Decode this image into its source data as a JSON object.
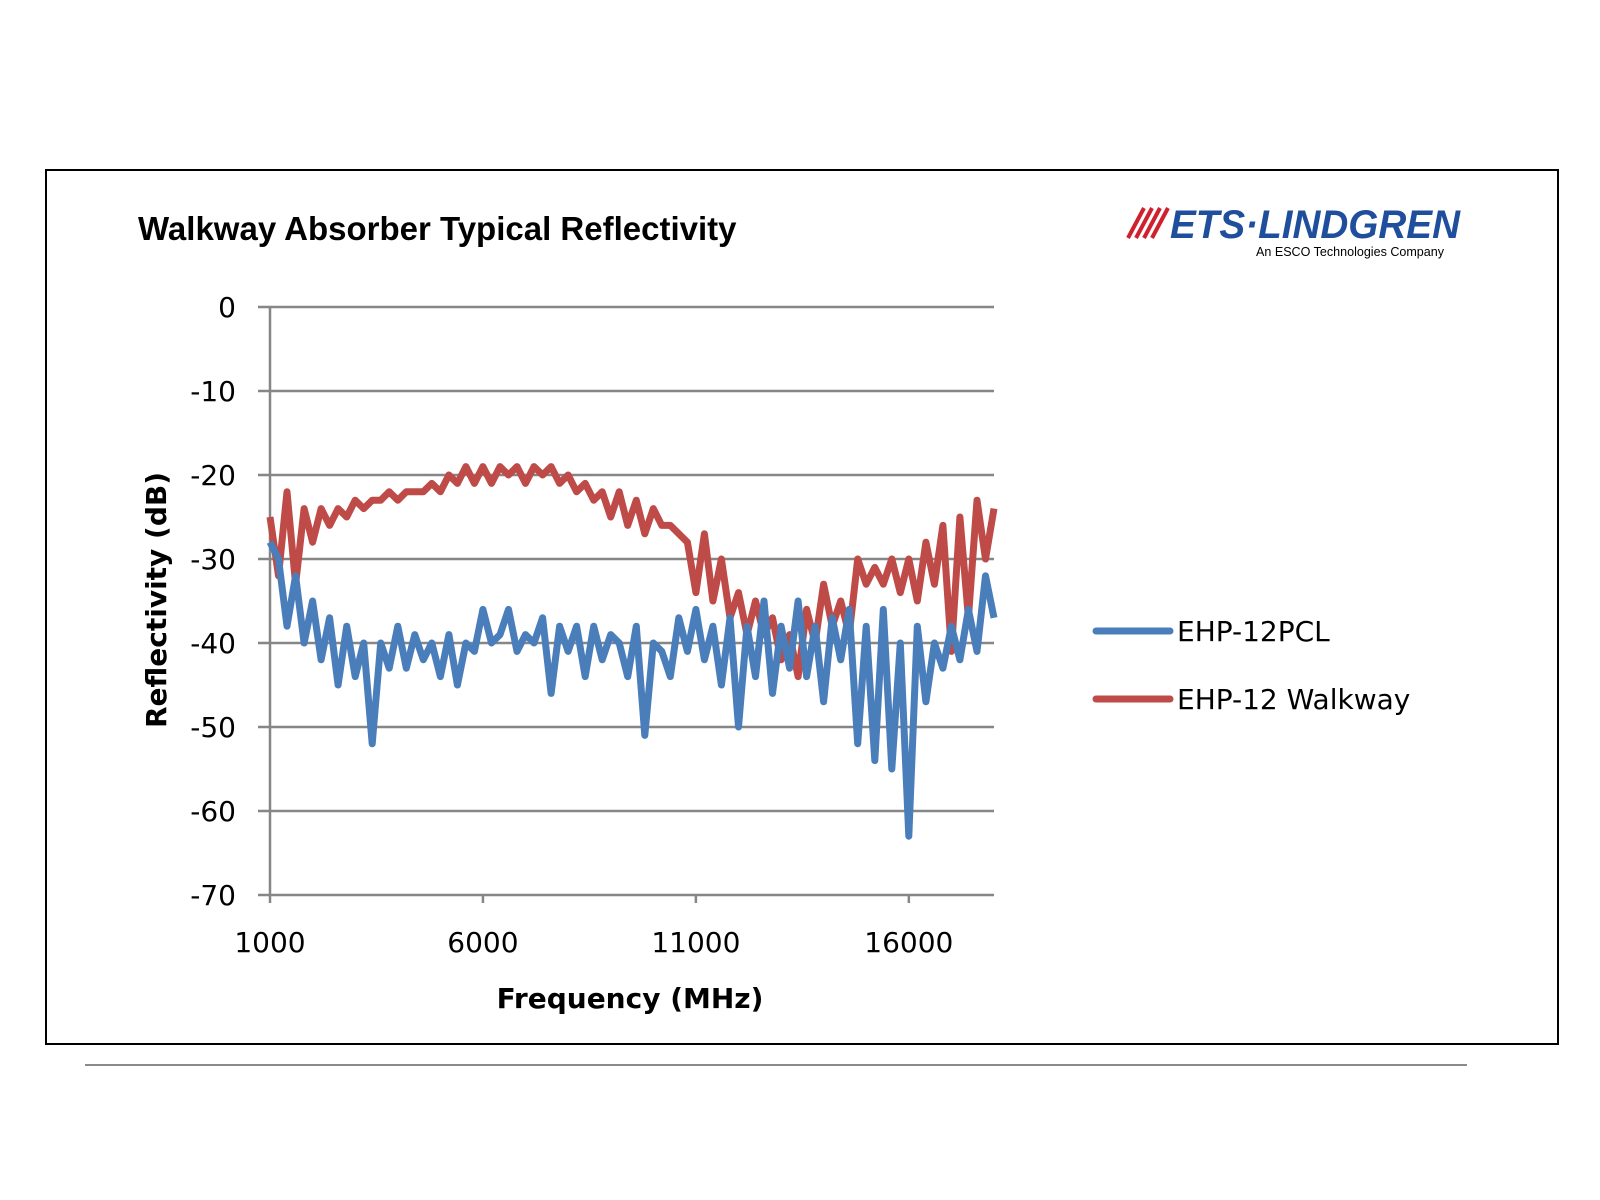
{
  "logo": {
    "brand": "ETS·LINDGREN",
    "tagline": "An ESCO Technologies Company"
  },
  "chart_data": {
    "type": "line",
    "title": "Walkway Absorber Typical Reflectivity",
    "xlabel": "Frequency (MHz)",
    "ylabel": "Reflectivity (dB)",
    "xlim": [
      1000,
      18000
    ],
    "ylim": [
      -70,
      0
    ],
    "xticks": [
      1000,
      6000,
      11000,
      16000
    ],
    "xtick_labels": [
      "1000",
      "6000",
      "11000",
      "16000"
    ],
    "yticks": [
      0,
      -10,
      -20,
      -30,
      -40,
      -50,
      -60,
      -70
    ],
    "ytick_labels": [
      "0",
      "-10",
      "-20",
      "-30",
      "-40",
      "-50",
      "-60",
      "-70"
    ],
    "grid": "horizontal",
    "legend_position": "right",
    "x_range": [
      1000,
      18000
    ],
    "series": [
      {
        "name": "EHP-12PCL",
        "color": "#4a7ebb",
        "values": [
          -28,
          -30,
          -38,
          -32,
          -40,
          -35,
          -42,
          -37,
          -45,
          -38,
          -44,
          -40,
          -52,
          -40,
          -43,
          -38,
          -43,
          -39,
          -42,
          -40,
          -44,
          -39,
          -45,
          -40,
          -41,
          -36,
          -40,
          -39,
          -36,
          -41,
          -39,
          -40,
          -37,
          -46,
          -38,
          -41,
          -38,
          -44,
          -38,
          -42,
          -39,
          -40,
          -44,
          -38,
          -51,
          -40,
          -41,
          -44,
          -37,
          -41,
          -36,
          -42,
          -38,
          -45,
          -37,
          -50,
          -38,
          -44,
          -35,
          -46,
          -38,
          -43,
          -35,
          -44,
          -38,
          -47,
          -37,
          -42,
          -36,
          -52,
          -38,
          -54,
          -36,
          -55,
          -40,
          -63,
          -38,
          -47,
          -40,
          -43,
          -38,
          -42,
          -36,
          -41,
          -32,
          -37
        ]
      },
      {
        "name": "EHP-12 Walkway",
        "color": "#be4b48",
        "values": [
          -25,
          -32,
          -22,
          -33,
          -24,
          -28,
          -24,
          -26,
          -24,
          -25,
          -23,
          -24,
          -23,
          -23,
          -22,
          -23,
          -22,
          -22,
          -22,
          -21,
          -22,
          -20,
          -21,
          -19,
          -21,
          -19,
          -21,
          -19,
          -20,
          -19,
          -21,
          -19,
          -20,
          -19,
          -21,
          -20,
          -22,
          -21,
          -23,
          -22,
          -25,
          -22,
          -26,
          -23,
          -27,
          -24,
          -26,
          -26,
          -27,
          -28,
          -34,
          -27,
          -35,
          -30,
          -37,
          -34,
          -39,
          -35,
          -39,
          -37,
          -42,
          -39,
          -44,
          -36,
          -40,
          -33,
          -38,
          -35,
          -39,
          -30,
          -33,
          -31,
          -33,
          -30,
          -34,
          -30,
          -35,
          -28,
          -33,
          -26,
          -41,
          -25,
          -37,
          -23,
          -30,
          -24
        ]
      }
    ]
  }
}
